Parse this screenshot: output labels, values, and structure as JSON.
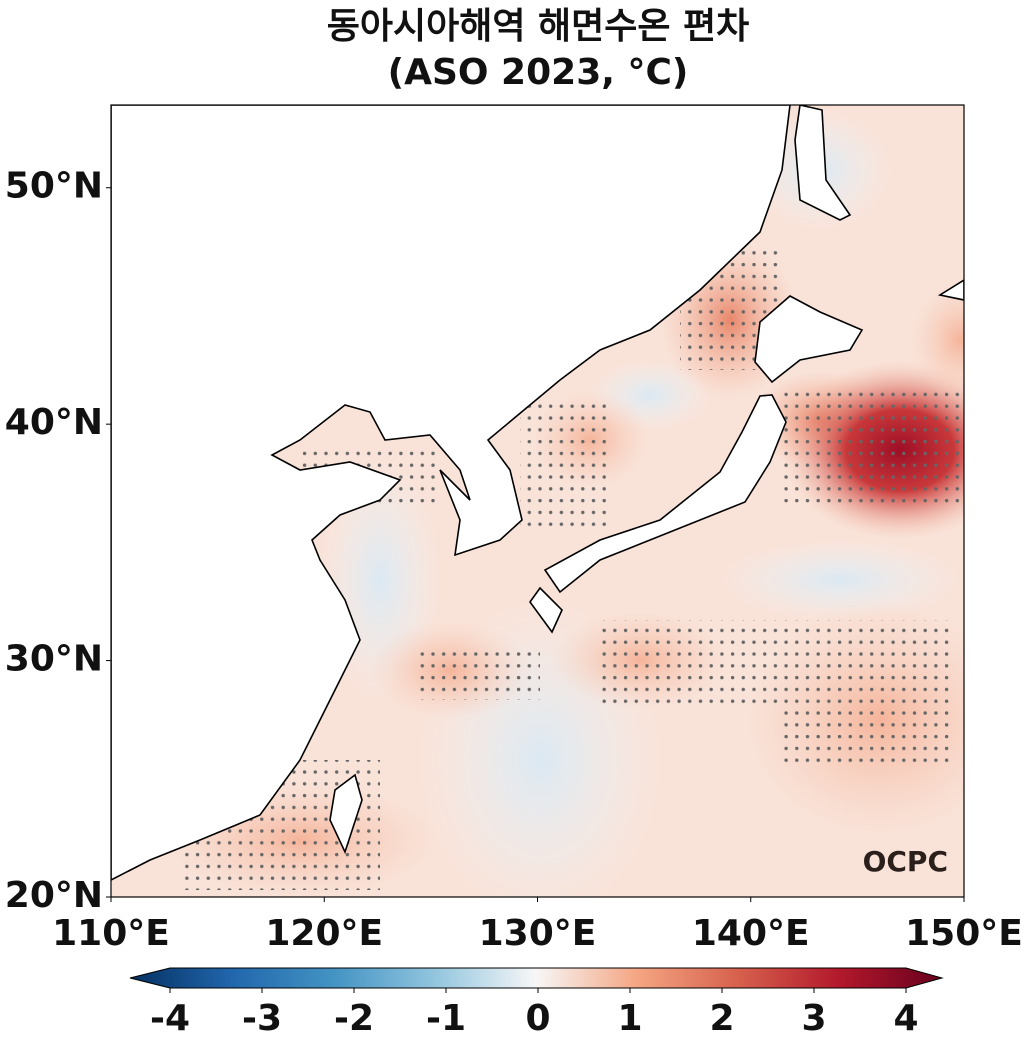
{
  "map": {
    "title": "동아시아해역 해면수온 편차",
    "subtitle": "(ASO 2023, °C)",
    "xlim": [
      110,
      150
    ],
    "ylim": [
      20,
      53.5
    ],
    "xticks": [
      {
        "value": 110,
        "label": "110°E"
      },
      {
        "value": 120,
        "label": "120°E"
      },
      {
        "value": 130,
        "label": "130°E"
      },
      {
        "value": 140,
        "label": "140°E"
      },
      {
        "value": 150,
        "label": "150°E"
      }
    ],
    "yticks": [
      {
        "value": 20,
        "label": "20°N"
      },
      {
        "value": 30,
        "label": "30°N"
      },
      {
        "value": 40,
        "label": "40°N"
      },
      {
        "value": 50,
        "label": "50°N"
      }
    ],
    "colorbar": {
      "lim": [
        -4,
        4
      ],
      "ticks": [
        -4,
        -3,
        -2,
        -1,
        0,
        1,
        2,
        3,
        4
      ]
    },
    "logo": "OCPC"
  }
}
